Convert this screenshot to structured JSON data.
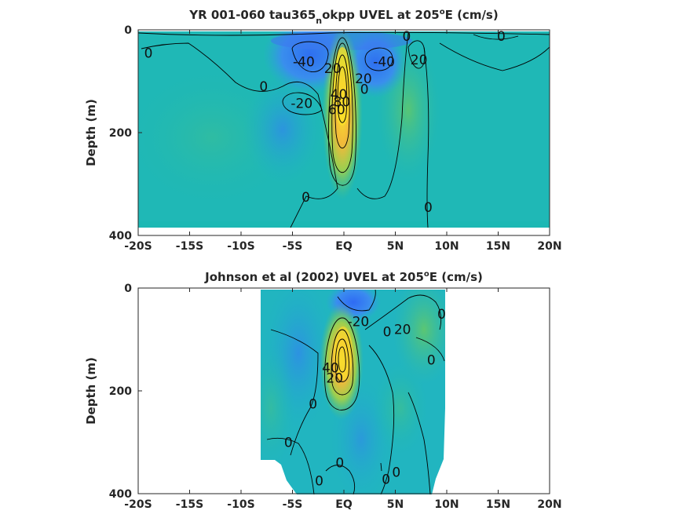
{
  "chart_data": [
    {
      "type": "heatmap",
      "title_main": "YR 001-060 tau365",
      "title_sub": "n",
      "title_rest": "okpp UVEL at 205",
      "title_sup": "o",
      "title_end": "E (cm/s)",
      "ylabel": "Depth (m)",
      "xlim": [
        -20,
        20
      ],
      "ylim": [
        0,
        400
      ],
      "x_ticks": [
        -20,
        -15,
        -10,
        -5,
        0,
        5,
        10,
        15,
        20
      ],
      "x_tick_labels": [
        "-20S",
        "-15S",
        "-10S",
        "-5S",
        "EQ",
        "5N",
        "10N",
        "15N",
        "20N"
      ],
      "y_ticks": [
        0,
        200,
        400
      ],
      "y_tick_labels": [
        "0",
        "200",
        "400"
      ],
      "contour_labels": [
        {
          "text": "0",
          "x": -19,
          "y": 45
        },
        {
          "text": "0",
          "x": -7.8,
          "y": 110
        },
        {
          "text": "-40",
          "x": -3.9,
          "y": 62
        },
        {
          "text": "-20",
          "x": -4.1,
          "y": 143
        },
        {
          "text": "20",
          "x": -1.1,
          "y": 75
        },
        {
          "text": "40",
          "x": -0.5,
          "y": 125
        },
        {
          "text": "80",
          "x": -0.2,
          "y": 140
        },
        {
          "text": "60",
          "x": -0.7,
          "y": 155
        },
        {
          "text": "20",
          "x": 1.9,
          "y": 95
        },
        {
          "text": "0",
          "x": 2.0,
          "y": 115
        },
        {
          "text": "-40",
          "x": 3.9,
          "y": 62
        },
        {
          "text": "0",
          "x": 6.1,
          "y": 12
        },
        {
          "text": "20",
          "x": 7.3,
          "y": 58
        },
        {
          "text": "0",
          "x": 15.3,
          "y": 12
        },
        {
          "text": "0",
          "x": -3.7,
          "y": 325
        },
        {
          "text": "0",
          "x": 8.2,
          "y": 345
        }
      ]
    },
    {
      "type": "heatmap",
      "title_main": "Johnson et al (2002) UVEL at 205",
      "title_sup": "o",
      "title_end": "E (cm/s)",
      "ylabel": "Depth (m)",
      "xlim": [
        -20,
        20
      ],
      "ylim": [
        0,
        400
      ],
      "data_extent_x": [
        -8,
        10
      ],
      "x_ticks": [
        -20,
        -15,
        -10,
        -5,
        0,
        5,
        10,
        15,
        20
      ],
      "x_tick_labels": [
        "-20S",
        "-15S",
        "-10S",
        "-5S",
        "EQ",
        "5N",
        "10N",
        "15N",
        "20N"
      ],
      "y_ticks": [
        0,
        200,
        400
      ],
      "y_tick_labels": [
        "0",
        "200",
        "400"
      ],
      "contour_labels": [
        {
          "text": "-20",
          "x": 1.4,
          "y": 65
        },
        {
          "text": "0",
          "x": 4.2,
          "y": 85
        },
        {
          "text": "20",
          "x": 5.7,
          "y": 80
        },
        {
          "text": "0",
          "x": 9.5,
          "y": 50
        },
        {
          "text": "0",
          "x": 8.5,
          "y": 140
        },
        {
          "text": "40",
          "x": -1.3,
          "y": 155
        },
        {
          "text": "20",
          "x": -0.9,
          "y": 175
        },
        {
          "text": "0",
          "x": -3.0,
          "y": 225
        },
        {
          "text": "0",
          "x": -5.4,
          "y": 300
        },
        {
          "text": "0",
          "x": -0.4,
          "y": 340
        },
        {
          "text": "0",
          "x": -2.4,
          "y": 375
        },
        {
          "text": "0",
          "x": 4.1,
          "y": 372
        },
        {
          "text": "0",
          "x": 5.1,
          "y": 358
        }
      ]
    }
  ]
}
